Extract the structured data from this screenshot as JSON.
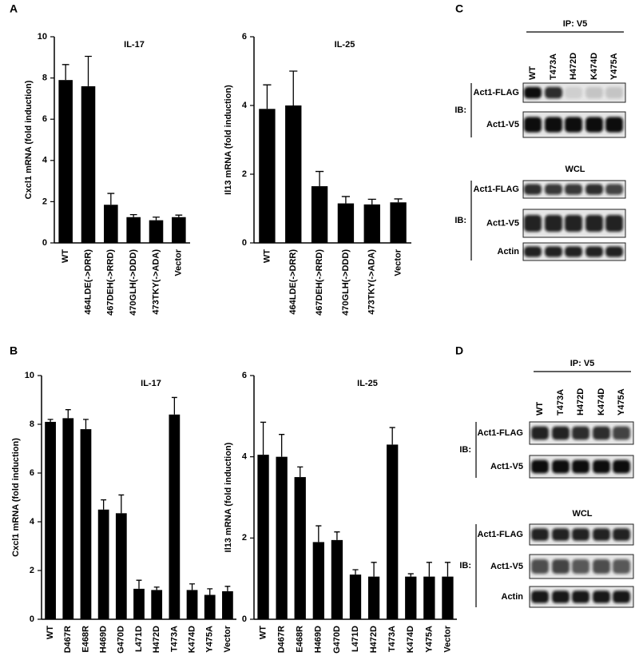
{
  "panel_labels": [
    "A",
    "B",
    "C",
    "D"
  ],
  "chart_data": [
    {
      "type": "bar",
      "title": "IL-17",
      "ylabel": "Cxcl1 mRNA (fold induction)",
      "categories": [
        "WT",
        "464LDE(->DRR)",
        "467DEH(->RRD)",
        "470GLH(->DDD)",
        "473TKY(->ADA)",
        "Vector"
      ],
      "values": [
        7.9,
        7.6,
        1.85,
        1.25,
        1.1,
        1.25
      ],
      "errors": [
        0.75,
        1.45,
        0.55,
        0.12,
        0.15,
        0.1
      ],
      "color": "#000000",
      "ylim": [
        0,
        10
      ],
      "yticks": [
        0,
        2,
        4,
        6,
        8,
        10
      ]
    },
    {
      "type": "bar",
      "title": "IL-25",
      "ylabel": "Il13 mRNA (fold induction)",
      "categories": [
        "WT",
        "464LDE(->DRR)",
        "467DEH(->RRD)",
        "470GLH(->DDD)",
        "473TKY(->ADA)",
        "Vector"
      ],
      "values": [
        3.9,
        4.0,
        1.65,
        1.15,
        1.12,
        1.18
      ],
      "errors": [
        0.7,
        1.0,
        0.43,
        0.2,
        0.15,
        0.1
      ],
      "color": "#000000",
      "ylim": [
        0,
        6
      ],
      "yticks": [
        0,
        2,
        4,
        6
      ]
    },
    {
      "type": "bar",
      "title": "IL-17",
      "ylabel": "Cxcl1 mRNA (fold induction)",
      "categories": [
        "WT",
        "D467R",
        "E468R",
        "H469D",
        "G470D",
        "L471D",
        "H472D",
        "T473A",
        "K474D",
        "Y475A",
        "Vector"
      ],
      "values": [
        8.1,
        8.25,
        7.8,
        4.5,
        4.35,
        1.25,
        1.2,
        8.4,
        1.2,
        1.0,
        1.15
      ],
      "errors": [
        0.1,
        0.35,
        0.4,
        0.4,
        0.75,
        0.35,
        0.12,
        0.7,
        0.25,
        0.25,
        0.2
      ],
      "color": "#000000",
      "ylim": [
        0,
        10
      ],
      "yticks": [
        0,
        2,
        4,
        6,
        8,
        10
      ]
    },
    {
      "type": "bar",
      "title": "IL-25",
      "ylabel": "Il13 mRNA (fold induction)",
      "categories": [
        "WT",
        "D467R",
        "E468R",
        "H469D",
        "G470D",
        "L471D",
        "H472D",
        "T473A",
        "K474D",
        "Y475A",
        "Vector"
      ],
      "values": [
        4.05,
        4.0,
        3.5,
        1.9,
        1.95,
        1.1,
        1.05,
        4.3,
        1.05,
        1.05,
        1.05
      ],
      "errors": [
        0.8,
        0.55,
        0.25,
        0.4,
        0.2,
        0.12,
        0.35,
        0.42,
        0.07,
        0.35,
        0.35
      ],
      "color": "#000000",
      "ylim": [
        0,
        6
      ],
      "yticks": [
        0,
        2,
        4,
        6
      ]
    }
  ],
  "blots": [
    {
      "ip_title": "IP: V5",
      "lanes": [
        "WT",
        "T473A",
        "H472D",
        "K474D",
        "Y475A"
      ],
      "ib": "IB:",
      "ip_rows": [
        "Act1-FLAG",
        "Act1-V5"
      ],
      "wcl_title": "WCL",
      "wcl_rows": [
        "Act1-FLAG",
        "Act1-V5",
        "Actin"
      ]
    },
    {
      "ip_title": "IP: V5",
      "lanes": [
        "WT",
        "T473A",
        "H472D",
        "K474D",
        "Y475A"
      ],
      "ib": "IB:",
      "ip_rows": [
        "Act1-FLAG",
        "Act1-V5"
      ],
      "wcl_title": "WCL",
      "wcl_rows": [
        "Act1-FLAG",
        "Act1-V5",
        "Actin"
      ]
    }
  ]
}
